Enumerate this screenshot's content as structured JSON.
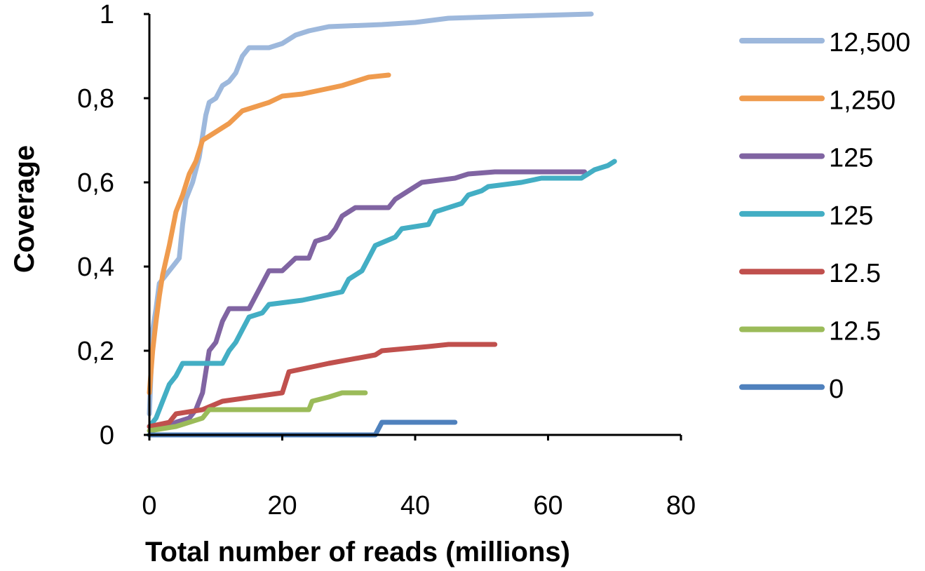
{
  "chart_data": {
    "type": "line",
    "xlabel": "Total number of reads (millions)",
    "ylabel": "Coverage",
    "xlim": [
      0,
      80
    ],
    "ylim": [
      0,
      1
    ],
    "x_ticks": [
      0,
      20,
      40,
      60,
      80
    ],
    "x_tick_labels": [
      "0",
      "20",
      "40",
      "60",
      "80"
    ],
    "y_ticks": [
      0,
      0.2,
      0.4,
      0.6,
      0.8,
      1
    ],
    "y_tick_labels": [
      "0",
      "0,2",
      "0,4",
      "0,6",
      "0,8",
      "1"
    ],
    "grid": false,
    "legend_position": "right",
    "series": [
      {
        "name": "12,500",
        "color": "#9db8dc",
        "points": [
          [
            0,
            0.05
          ],
          [
            0.5,
            0.25
          ],
          [
            1,
            0.3
          ],
          [
            1.5,
            0.36
          ],
          [
            2.5,
            0.38
          ],
          [
            3.5,
            0.4
          ],
          [
            4.5,
            0.42
          ],
          [
            5,
            0.5
          ],
          [
            5.5,
            0.56
          ],
          [
            6.5,
            0.6
          ],
          [
            7.5,
            0.66
          ],
          [
            8.5,
            0.76
          ],
          [
            9,
            0.79
          ],
          [
            10,
            0.8
          ],
          [
            11,
            0.83
          ],
          [
            12,
            0.84
          ],
          [
            13,
            0.86
          ],
          [
            14,
            0.9
          ],
          [
            15,
            0.92
          ],
          [
            18,
            0.92
          ],
          [
            20,
            0.93
          ],
          [
            22,
            0.95
          ],
          [
            24,
            0.96
          ],
          [
            27,
            0.97
          ],
          [
            35,
            0.975
          ],
          [
            40,
            0.98
          ],
          [
            45,
            0.99
          ],
          [
            55,
            0.995
          ],
          [
            66.5,
            1.0
          ]
        ]
      },
      {
        "name": "1,250",
        "color": "#ef9b4e",
        "points": [
          [
            0,
            0.1
          ],
          [
            0.5,
            0.2
          ],
          [
            1,
            0.27
          ],
          [
            1.5,
            0.33
          ],
          [
            2,
            0.38
          ],
          [
            3,
            0.45
          ],
          [
            4,
            0.53
          ],
          [
            5,
            0.57
          ],
          [
            6,
            0.62
          ],
          [
            7,
            0.65
          ],
          [
            8,
            0.7
          ],
          [
            10,
            0.72
          ],
          [
            12,
            0.74
          ],
          [
            14,
            0.77
          ],
          [
            16,
            0.78
          ],
          [
            18,
            0.79
          ],
          [
            20,
            0.805
          ],
          [
            23,
            0.81
          ],
          [
            26,
            0.82
          ],
          [
            29,
            0.83
          ],
          [
            31,
            0.84
          ],
          [
            33,
            0.85
          ],
          [
            36,
            0.855
          ]
        ]
      },
      {
        "name": "125",
        "color": "#8064a2",
        "points": [
          [
            0,
            0.02
          ],
          [
            3,
            0.02
          ],
          [
            4,
            0.03
          ],
          [
            6,
            0.04
          ],
          [
            7,
            0.06
          ],
          [
            8,
            0.1
          ],
          [
            8.5,
            0.15
          ],
          [
            9,
            0.2
          ],
          [
            10,
            0.22
          ],
          [
            11,
            0.27
          ],
          [
            12,
            0.3
          ],
          [
            15,
            0.3
          ],
          [
            16,
            0.33
          ],
          [
            17,
            0.36
          ],
          [
            18,
            0.39
          ],
          [
            20,
            0.39
          ],
          [
            22,
            0.42
          ],
          [
            24,
            0.42
          ],
          [
            25,
            0.46
          ],
          [
            27,
            0.47
          ],
          [
            28,
            0.49
          ],
          [
            29,
            0.52
          ],
          [
            31,
            0.54
          ],
          [
            36,
            0.54
          ],
          [
            37,
            0.56
          ],
          [
            39,
            0.58
          ],
          [
            41,
            0.6
          ],
          [
            46,
            0.61
          ],
          [
            48,
            0.62
          ],
          [
            52,
            0.625
          ],
          [
            65.5,
            0.625
          ]
        ]
      },
      {
        "name": "125",
        "color": "#43aec4",
        "points": [
          [
            0,
            0.02
          ],
          [
            1,
            0.04
          ],
          [
            2,
            0.08
          ],
          [
            3,
            0.12
          ],
          [
            4,
            0.14
          ],
          [
            5,
            0.17
          ],
          [
            11,
            0.17
          ],
          [
            12,
            0.2
          ],
          [
            13,
            0.22
          ],
          [
            14,
            0.25
          ],
          [
            15,
            0.28
          ],
          [
            17,
            0.29
          ],
          [
            18,
            0.31
          ],
          [
            23,
            0.32
          ],
          [
            26,
            0.33
          ],
          [
            29,
            0.34
          ],
          [
            30,
            0.37
          ],
          [
            32,
            0.39
          ],
          [
            33,
            0.42
          ],
          [
            34,
            0.45
          ],
          [
            37,
            0.47
          ],
          [
            38,
            0.49
          ],
          [
            42,
            0.5
          ],
          [
            43,
            0.53
          ],
          [
            47,
            0.55
          ],
          [
            48,
            0.57
          ],
          [
            50,
            0.58
          ],
          [
            51,
            0.59
          ],
          [
            56,
            0.6
          ],
          [
            59,
            0.61
          ],
          [
            65,
            0.61
          ],
          [
            66,
            0.62
          ],
          [
            67,
            0.63
          ],
          [
            69,
            0.64
          ],
          [
            70,
            0.65
          ]
        ]
      },
      {
        "name": "12.5",
        "color": "#c0504d",
        "points": [
          [
            0,
            0.02
          ],
          [
            3,
            0.03
          ],
          [
            4,
            0.05
          ],
          [
            8,
            0.06
          ],
          [
            11,
            0.08
          ],
          [
            20,
            0.1
          ],
          [
            21,
            0.15
          ],
          [
            27,
            0.17
          ],
          [
            34,
            0.19
          ],
          [
            35,
            0.2
          ],
          [
            42,
            0.21
          ],
          [
            45,
            0.215
          ],
          [
            52,
            0.215
          ]
        ]
      },
      {
        "name": "12.5",
        "color": "#9bbb59",
        "points": [
          [
            0,
            0.01
          ],
          [
            4,
            0.02
          ],
          [
            8,
            0.04
          ],
          [
            9,
            0.06
          ],
          [
            24,
            0.06
          ],
          [
            24.5,
            0.08
          ],
          [
            27,
            0.09
          ],
          [
            29,
            0.1
          ],
          [
            32.5,
            0.1
          ]
        ]
      },
      {
        "name": "0",
        "color": "#4f81bd",
        "points": [
          [
            0,
            0
          ],
          [
            34,
            0
          ],
          [
            35,
            0.03
          ],
          [
            46,
            0.03
          ]
        ]
      }
    ]
  }
}
